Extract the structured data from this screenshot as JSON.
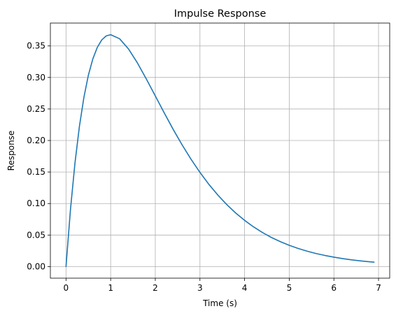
{
  "chart_data": {
    "type": "line",
    "title": "Impulse Response",
    "xlabel": "Time (s)",
    "ylabel": "Response",
    "xlim": [
      -0.35,
      7.25
    ],
    "ylim": [
      -0.0184,
      0.3863
    ],
    "xticks": [
      0,
      1,
      2,
      3,
      4,
      5,
      6,
      7
    ],
    "xtick_labels": [
      "0",
      "1",
      "2",
      "3",
      "4",
      "5",
      "6",
      "7"
    ],
    "yticks": [
      0.0,
      0.05,
      0.1,
      0.15,
      0.2,
      0.25,
      0.3,
      0.35
    ],
    "ytick_labels": [
      "0.00",
      "0.05",
      "0.10",
      "0.15",
      "0.20",
      "0.25",
      "0.30",
      "0.35"
    ],
    "grid": true,
    "series": [
      {
        "color": "#1f77b4",
        "x": [
          0,
          0.1,
          0.2,
          0.3,
          0.4,
          0.5,
          0.6,
          0.7,
          0.8,
          0.9,
          1.0,
          1.2,
          1.4,
          1.6,
          1.8,
          2.0,
          2.2,
          2.4,
          2.6,
          2.8,
          3.0,
          3.2,
          3.4,
          3.6,
          3.8,
          4.0,
          4.2,
          4.4,
          4.6,
          4.8,
          5.0,
          5.2,
          5.4,
          5.6,
          5.8,
          6.0,
          6.2,
          6.4,
          6.6,
          6.8,
          6.9
        ],
        "y": [
          0,
          0.0905,
          0.1637,
          0.2222,
          0.2681,
          0.3033,
          0.3293,
          0.3476,
          0.3595,
          0.3659,
          0.3679,
          0.3614,
          0.3452,
          0.323,
          0.2975,
          0.2707,
          0.2438,
          0.2177,
          0.1931,
          0.1703,
          0.1494,
          0.1304,
          0.1135,
          0.0984,
          0.085,
          0.0733,
          0.063,
          0.054,
          0.0462,
          0.0395,
          0.0337,
          0.0287,
          0.0244,
          0.0207,
          0.0176,
          0.0149,
          0.0126,
          0.0106,
          0.009,
          0.0076,
          0.007
        ]
      }
    ]
  }
}
